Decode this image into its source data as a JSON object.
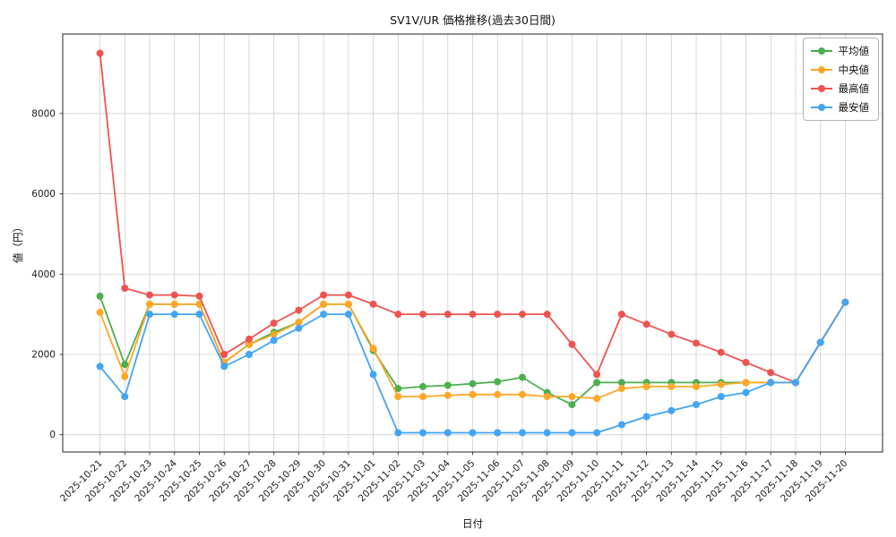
{
  "chart_data": {
    "type": "line",
    "title": "SV1V/UR 価格推移(過去30日間)",
    "xlabel": "日付",
    "ylabel": "値（円）",
    "grid": true,
    "legend_position": "upper right",
    "ylim": [
      -430,
      9980
    ],
    "yticks": [
      0,
      2000,
      4000,
      6000,
      8000
    ],
    "categories": [
      "2025-10-21",
      "2025-10-22",
      "2025-10-23",
      "2025-10-24",
      "2025-10-25",
      "2025-10-26",
      "2025-10-27",
      "2025-10-28",
      "2025-10-29",
      "2025-10-30",
      "2025-10-31",
      "2025-11-01",
      "2025-11-02",
      "2025-11-03",
      "2025-11-04",
      "2025-11-05",
      "2025-11-06",
      "2025-11-07",
      "2025-11-08",
      "2025-11-09",
      "2025-11-10",
      "2025-11-11",
      "2025-11-12",
      "2025-11-13",
      "2025-11-14",
      "2025-11-15",
      "2025-11-16",
      "2025-11-17",
      "2025-11-18",
      "2025-11-19",
      "2025-11-20"
    ],
    "series": [
      {
        "key": "mean",
        "name": "平均値",
        "color": "#4caf50",
        "values": [
          3450,
          1750,
          3250,
          3250,
          3250,
          1800,
          2250,
          2550,
          2800,
          3250,
          3250,
          2100,
          1150,
          1200,
          1230,
          1270,
          1320,
          1430,
          1050,
          750,
          1300,
          1300,
          1300,
          1300,
          1300,
          1300,
          1300,
          1300,
          1300,
          2300,
          3300
        ]
      },
      {
        "key": "median",
        "name": "中央値",
        "color": "#ffa726",
        "values": [
          3050,
          1450,
          3250,
          3250,
          3250,
          1800,
          2250,
          2500,
          2800,
          3250,
          3250,
          2150,
          950,
          950,
          980,
          1000,
          1000,
          1000,
          950,
          950,
          900,
          1150,
          1200,
          1200,
          1200,
          1250,
          1300,
          1300,
          1300,
          2300,
          3300
        ]
      },
      {
        "key": "max",
        "name": "最高値",
        "color": "#ef5350",
        "values": [
          9500,
          3650,
          3480,
          3480,
          3450,
          2000,
          2380,
          2780,
          3100,
          3480,
          3480,
          3250,
          3000,
          3000,
          3000,
          3000,
          3000,
          3000,
          3000,
          2250,
          1500,
          3000,
          2750,
          2500,
          2280,
          2050,
          1800,
          1550,
          1300,
          2300,
          3300
        ]
      },
      {
        "key": "min",
        "name": "最安値",
        "color": "#42a5f5",
        "values": [
          1700,
          950,
          3000,
          3000,
          3000,
          1700,
          2000,
          2350,
          2650,
          3000,
          3000,
          1500,
          50,
          50,
          50,
          50,
          50,
          50,
          50,
          50,
          50,
          250,
          450,
          600,
          750,
          950,
          1050,
          1300,
          1300,
          2300,
          3300
        ]
      }
    ]
  }
}
